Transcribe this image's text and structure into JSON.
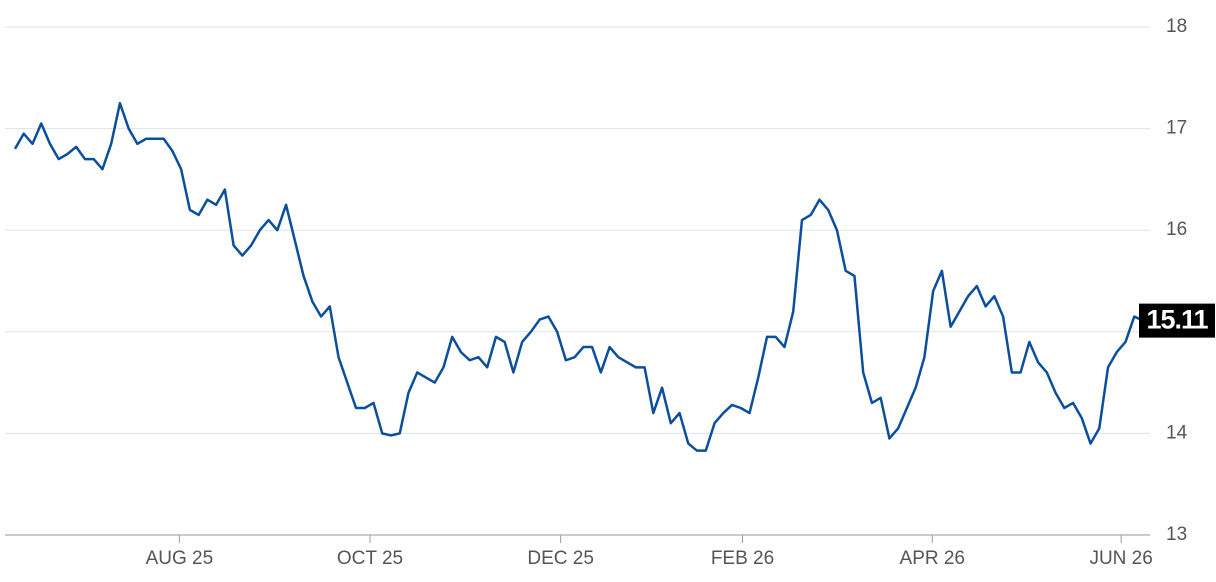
{
  "chart_data": {
    "type": "line",
    "values": [
      16.8,
      16.95,
      16.85,
      17.05,
      16.85,
      16.7,
      16.75,
      16.82,
      16.7,
      16.7,
      16.6,
      16.85,
      17.25,
      17.0,
      16.85,
      16.9,
      16.9,
      16.9,
      16.78,
      16.6,
      16.2,
      16.15,
      16.3,
      16.25,
      16.4,
      15.85,
      15.75,
      15.85,
      16.0,
      16.1,
      16.0,
      16.25,
      15.9,
      15.55,
      15.3,
      15.15,
      15.25,
      14.75,
      14.5,
      14.25,
      14.25,
      14.3,
      14.0,
      13.98,
      14.0,
      14.4,
      14.6,
      14.55,
      14.5,
      14.65,
      14.95,
      14.8,
      14.72,
      14.75,
      14.65,
      14.95,
      14.9,
      14.6,
      14.9,
      15.0,
      15.12,
      15.15,
      15.0,
      14.72,
      14.75,
      14.85,
      14.85,
      14.6,
      14.85,
      14.75,
      14.7,
      14.65,
      14.65,
      14.2,
      14.45,
      14.1,
      14.2,
      13.9,
      13.83,
      13.83,
      14.1,
      14.2,
      14.28,
      14.25,
      14.2,
      14.55,
      14.95,
      14.95,
      14.85,
      15.2,
      16.1,
      16.15,
      16.3,
      16.2,
      16.0,
      15.6,
      15.55,
      14.6,
      14.3,
      14.35,
      13.95,
      14.05,
      14.25,
      14.45,
      14.75,
      15.4,
      15.6,
      15.05,
      15.2,
      15.35,
      15.45,
      15.25,
      15.35,
      15.15,
      14.6,
      14.6,
      14.9,
      14.7,
      14.6,
      14.4,
      14.25,
      14.3,
      14.15,
      13.9,
      14.05,
      14.65,
      14.8,
      14.9,
      15.15,
      15.11
    ],
    "color": "#0b4f9c",
    "xlim": [
      0,
      129
    ],
    "xticks": [
      {
        "value": 18.8,
        "label": "AUG 25"
      },
      {
        "value": 40.6,
        "label": "OCT 25"
      },
      {
        "value": 62.4,
        "label": "DEC 25"
      },
      {
        "value": 83.2,
        "label": "FEB 26"
      },
      {
        "value": 104.9,
        "label": "APR 26"
      },
      {
        "value": 126.5,
        "label": "JUN 26"
      }
    ],
    "ylim": [
      13,
      18
    ],
    "yticks": [
      13,
      14,
      15,
      16,
      17,
      18
    ],
    "grid": true
  }
}
